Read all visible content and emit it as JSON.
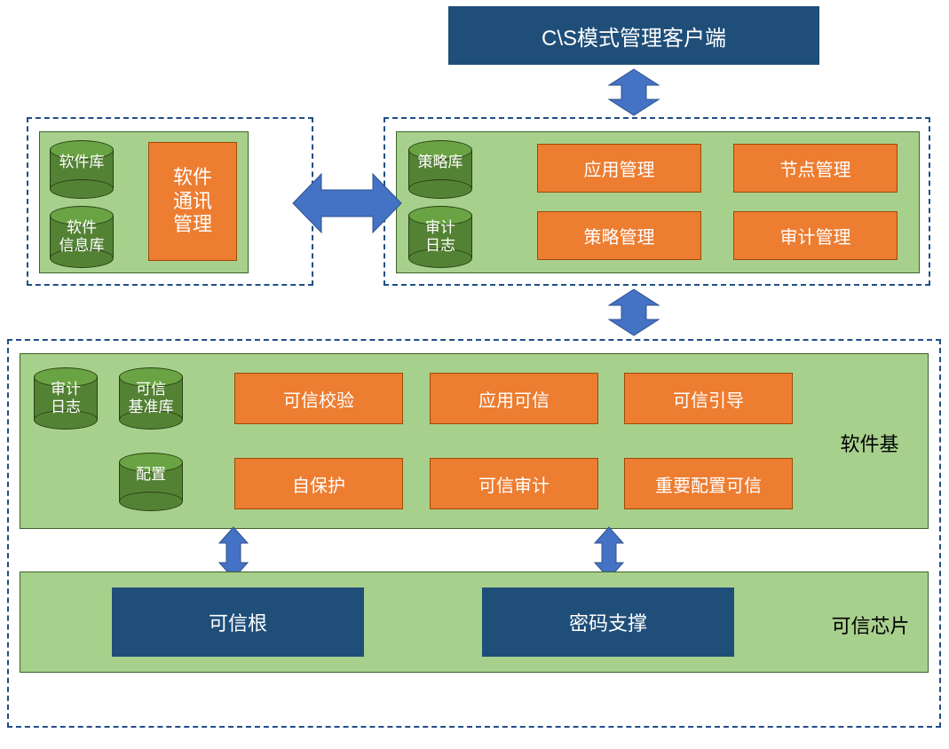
{
  "colors": {
    "dashed_border": "#1f4e87",
    "green_panel": "#a8d08d",
    "green_panel_border": "#3b6328",
    "orange": "#ed7d31",
    "orange_border": "#9c4a06",
    "dark_blue": "#1f4e79",
    "cylinder_fill": "#548235",
    "cylinder_top": "#6aa343",
    "cylinder_border": "#274013",
    "arrow_fill": "#4472c4",
    "arrow_border": "#2f528f",
    "text_white": "#ffffff",
    "text_black": "#000000",
    "background": "#ffffff"
  },
  "typography": {
    "orange_block_fontsize": 20,
    "darkblue_block_fontsize": 22,
    "side_label_fontsize": 22,
    "cylinder_label_fontsize": 17
  },
  "header": {
    "title": "C\\S模式管理客户端"
  },
  "middle_right": {
    "orange_blocks": {
      "a": "应用管理",
      "b": "节点管理",
      "c": "策略管理",
      "d": "审计管理"
    },
    "cylinders": {
      "top": "策略库",
      "bottom": "审计日志"
    }
  },
  "middle_left": {
    "orange_block": "软件通讯管理",
    "cylinders": {
      "top": "软件库",
      "bottom": "软件信息库"
    }
  },
  "bottom_upper": {
    "label": "软件基 ",
    "orange_blocks": {
      "r1c1": "可信校验",
      "r1c2": "应用可信",
      "r1c3": "可信引导",
      "r2c1": "自保护",
      "r2c2": "可信审计",
      "r2c3": "重要配置可信"
    },
    "cylinders": {
      "a": "审计日志",
      "b": "可信基准库",
      "c": "配置"
    }
  },
  "bottom_lower": {
    "label": "可信芯片",
    "blocks": {
      "left": "可信根",
      "right": "密码支撑"
    }
  }
}
